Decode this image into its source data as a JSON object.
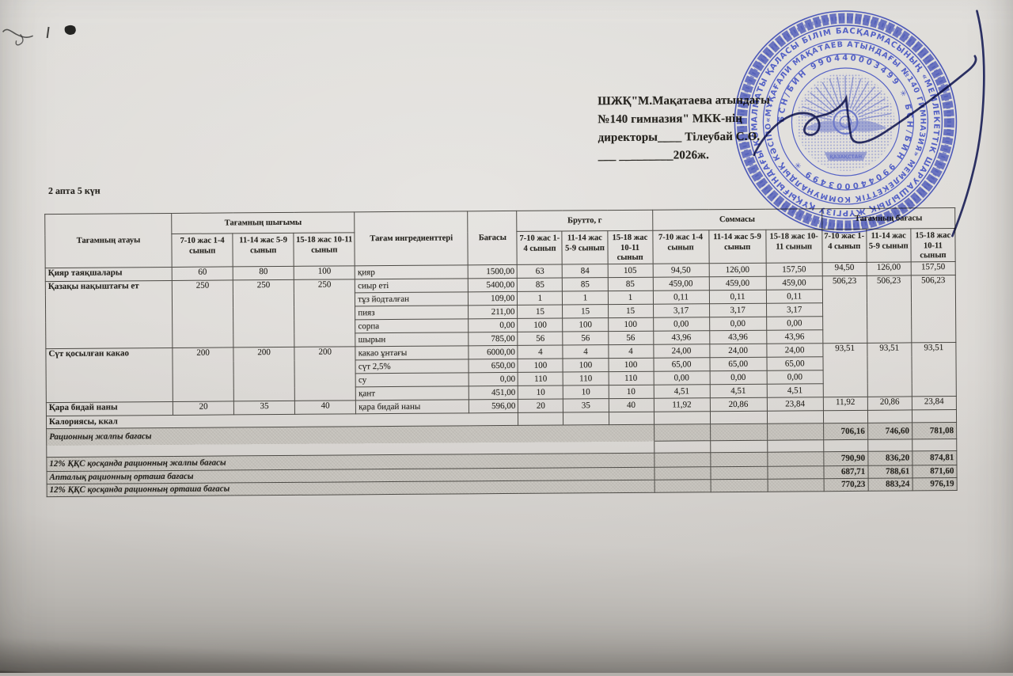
{
  "approval": {
    "line1": "ШЖҚ\"М.Мақатаева атындағы",
    "line2": "№140 гимназия\" МКК-нің",
    "line3": "директоры____ Тілеубай С.Ө.",
    "line4": "___ _________2026ж."
  },
  "period_label": "2 апта 5 күн",
  "stamp": {
    "ring_outer": "АЛМАТЫ ҚАЛАСЫ БІЛІМ БАСҚАРМАСЫНЫҢ «МЕМЛЕКЕТТІК ШАРУАШЫЛЫҚ ЖҮРГІЗУ ҚҰҚЫҒЫНДАҒЫ КОММУНАЛДЫҚ КӘСІПОРНЫ» ҚАЗАҚСТАН",
    "ring_middle": "«МҰҚАҒАЛИ МАҚАТАЕВ АТЫНДАҒЫ №140 ГИМНАЗИЯ» МЕМЛЕКЕТТІК КОММУНАЛДЫҚ КӘСІПОРНЫ",
    "ring_bin": "БСН/БИН 990440003499 ✳ БСН/БИН 990440003499 ✳",
    "center_caption": "ҚАЗАҚСТАН",
    "color": "#4453c2"
  },
  "signature_color": "#1c2158",
  "table": {
    "headers": {
      "name": "Тағамның атауы",
      "output_group": "Тағамның шығымы",
      "ingredients": "Тағам ингредиенттері",
      "price": "Бағасы",
      "brutto_group": "Брутто, г",
      "sum_group": "Соммасы",
      "meal_price_group": "Тағамның бағасы",
      "age_cols": [
        "7-10 жас 1-4 сынып",
        "11-14 жас 5-9 сынып",
        "15-18 жас 10-11 сынып"
      ]
    },
    "dishes": [
      {
        "name": "Қияр таяқшалары",
        "output": [
          "60",
          "80",
          "100"
        ],
        "meal_price": [
          "94,50",
          "126,00",
          "157,50"
        ],
        "ingredients": [
          {
            "name": "қияр",
            "price": "1500,00",
            "brutto": [
              "63",
              "84",
              "105"
            ],
            "sum": [
              "94,50",
              "126,00",
              "157,50"
            ]
          }
        ]
      },
      {
        "name": "Қазақы нақыштағы ет",
        "output": [
          "250",
          "250",
          "250"
        ],
        "meal_price": [
          "506,23",
          "506,23",
          "506,23"
        ],
        "ingredients": [
          {
            "name": "сиыр еті",
            "price": "5400,00",
            "brutto": [
              "85",
              "85",
              "85"
            ],
            "sum": [
              "459,00",
              "459,00",
              "459,00"
            ]
          },
          {
            "name": "тұз йодталған",
            "price": "109,00",
            "brutto": [
              "1",
              "1",
              "1"
            ],
            "sum": [
              "0,11",
              "0,11",
              "0,11"
            ]
          },
          {
            "name": "пияз",
            "price": "211,00",
            "brutto": [
              "15",
              "15",
              "15"
            ],
            "sum": [
              "3,17",
              "3,17",
              "3,17"
            ]
          },
          {
            "name": "сорпа",
            "price": "0,00",
            "brutto": [
              "100",
              "100",
              "100"
            ],
            "sum": [
              "0,00",
              "0,00",
              "0,00"
            ]
          },
          {
            "name": "шырын",
            "price": "785,00",
            "brutto": [
              "56",
              "56",
              "56"
            ],
            "sum": [
              "43,96",
              "43,96",
              "43,96"
            ]
          }
        ]
      },
      {
        "name": "Сүт қосылған какао",
        "output": [
          "200",
          "200",
          "200"
        ],
        "meal_price": [
          "93,51",
          "93,51",
          "93,51"
        ],
        "ingredients": [
          {
            "name": "какао ұнтағы",
            "price": "6000,00",
            "brutto": [
              "4",
              "4",
              "4"
            ],
            "sum": [
              "24,00",
              "24,00",
              "24,00"
            ]
          },
          {
            "name": "сүт 2,5%",
            "price": "650,00",
            "brutto": [
              "100",
              "100",
              "100"
            ],
            "sum": [
              "65,00",
              "65,00",
              "65,00"
            ]
          },
          {
            "name": "су",
            "price": "0,00",
            "brutto": [
              "110",
              "110",
              "110"
            ],
            "sum": [
              "0,00",
              "0,00",
              "0,00"
            ]
          },
          {
            "name": "қант",
            "price": "451,00",
            "brutto": [
              "10",
              "10",
              "10"
            ],
            "sum": [
              "4,51",
              "4,51",
              "4,51"
            ]
          }
        ]
      },
      {
        "name": "Қара бидай наны",
        "output": [
          "20",
          "35",
          "40"
        ],
        "meal_price": [
          "11,92",
          "20,86",
          "23,84"
        ],
        "ingredients": [
          {
            "name": "қара бидай наны",
            "price": "596,00",
            "brutto": [
              "20",
              "35",
              "40"
            ],
            "sum": [
              "11,92",
              "20,86",
              "23,84"
            ]
          }
        ]
      }
    ],
    "calories_label": "Калориясы, ккал",
    "summary_rows": [
      {
        "label": "Рационның жалпы бағасы",
        "values": [
          "706,16",
          "746,60",
          "781,08"
        ]
      },
      {
        "label": "12% ҚҚС қосқанда рационның жалпы бағасы",
        "values": [
          "790,90",
          "836,20",
          "874,81"
        ]
      },
      {
        "label": "Апталық рационның орташа бағасы",
        "values": [
          "687,71",
          "788,61",
          "871,60"
        ]
      },
      {
        "label": "12% ҚҚС қосқанда рационның орташа бағасы",
        "values": [
          "770,23",
          "883,24",
          "976,19"
        ]
      }
    ]
  }
}
